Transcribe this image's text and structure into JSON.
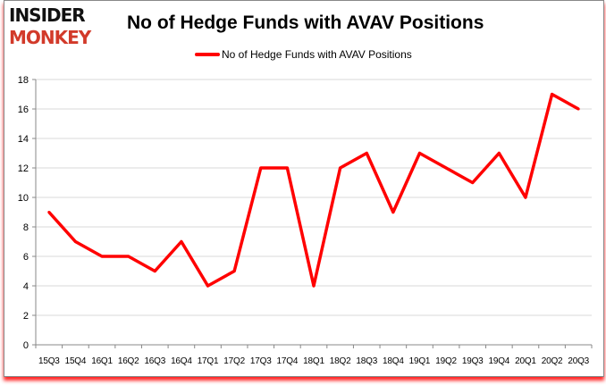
{
  "logo": {
    "line1": "INSIDER",
    "line2": "MONKEY"
  },
  "chart_data": {
    "type": "line",
    "title": "No of Hedge Funds with AVAV Positions",
    "categories": [
      "15Q3",
      "15Q4",
      "16Q1",
      "16Q2",
      "16Q3",
      "16Q4",
      "17Q1",
      "17Q2",
      "17Q3",
      "17Q4",
      "18Q1",
      "18Q2",
      "18Q3",
      "18Q4",
      "19Q1",
      "19Q2",
      "19Q3",
      "19Q4",
      "20Q1",
      "20Q2",
      "20Q3"
    ],
    "series": [
      {
        "name": "No of Hedge Funds with AVAV Positions",
        "values": [
          9,
          7,
          6,
          6,
          5,
          7,
          4,
          5,
          12,
          12,
          4,
          12,
          13,
          9,
          13,
          12,
          11,
          13,
          10,
          17,
          16
        ],
        "color": "#ff0000"
      }
    ],
    "ylim": [
      0,
      18
    ],
    "yticks": [
      0,
      2,
      4,
      6,
      8,
      10,
      12,
      14,
      16,
      18
    ],
    "grid": true,
    "legend": "top-center"
  }
}
